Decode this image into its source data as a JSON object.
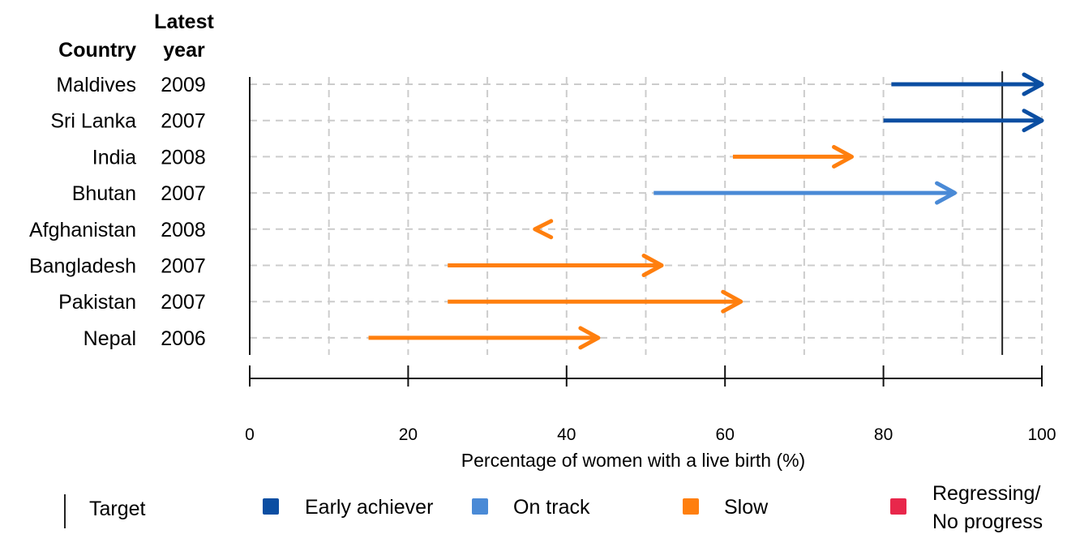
{
  "chart_data": {
    "type": "arrow",
    "header_country": "Country",
    "header_year_line1": "Latest",
    "header_year_line2": "year",
    "xlabel": "Percentage of women with a live birth (%)",
    "xlim": [
      0,
      100
    ],
    "x_ticks": [
      "0",
      "20",
      "40",
      "60",
      "80",
      "100"
    ],
    "target": 95,
    "rows": [
      {
        "country": "Maldives",
        "year": "2009",
        "start": 81,
        "end": 100,
        "status": "early"
      },
      {
        "country": "Sri Lanka",
        "year": "2007",
        "start": 80,
        "end": 100,
        "status": "early"
      },
      {
        "country": "India",
        "year": "2008",
        "start": 61,
        "end": 76,
        "status": "slow"
      },
      {
        "country": "Bhutan",
        "year": "2007",
        "start": 51,
        "end": 89,
        "status": "ontrack"
      },
      {
        "country": "Afghanistan",
        "year": "2008",
        "start": 36,
        "end": 36,
        "status": "slow",
        "direction": "left"
      },
      {
        "country": "Bangladesh",
        "year": "2007",
        "start": 25,
        "end": 52,
        "status": "slow"
      },
      {
        "country": "Pakistan",
        "year": "2007",
        "start": 25,
        "end": 62,
        "status": "slow"
      },
      {
        "country": "Nepal",
        "year": "2006",
        "start": 15,
        "end": 44,
        "status": "slow"
      }
    ],
    "legend": {
      "target": "Target",
      "early": "Early achiever",
      "ontrack": "On track",
      "slow": "Slow",
      "regress_line1": "Regressing/",
      "regress_line2": "No progress"
    },
    "colors": {
      "early": "#0b4ea2",
      "ontrack": "#4a8ad6",
      "slow": "#ff7f0e",
      "regress": "#e8274b",
      "target": "#222222"
    }
  }
}
